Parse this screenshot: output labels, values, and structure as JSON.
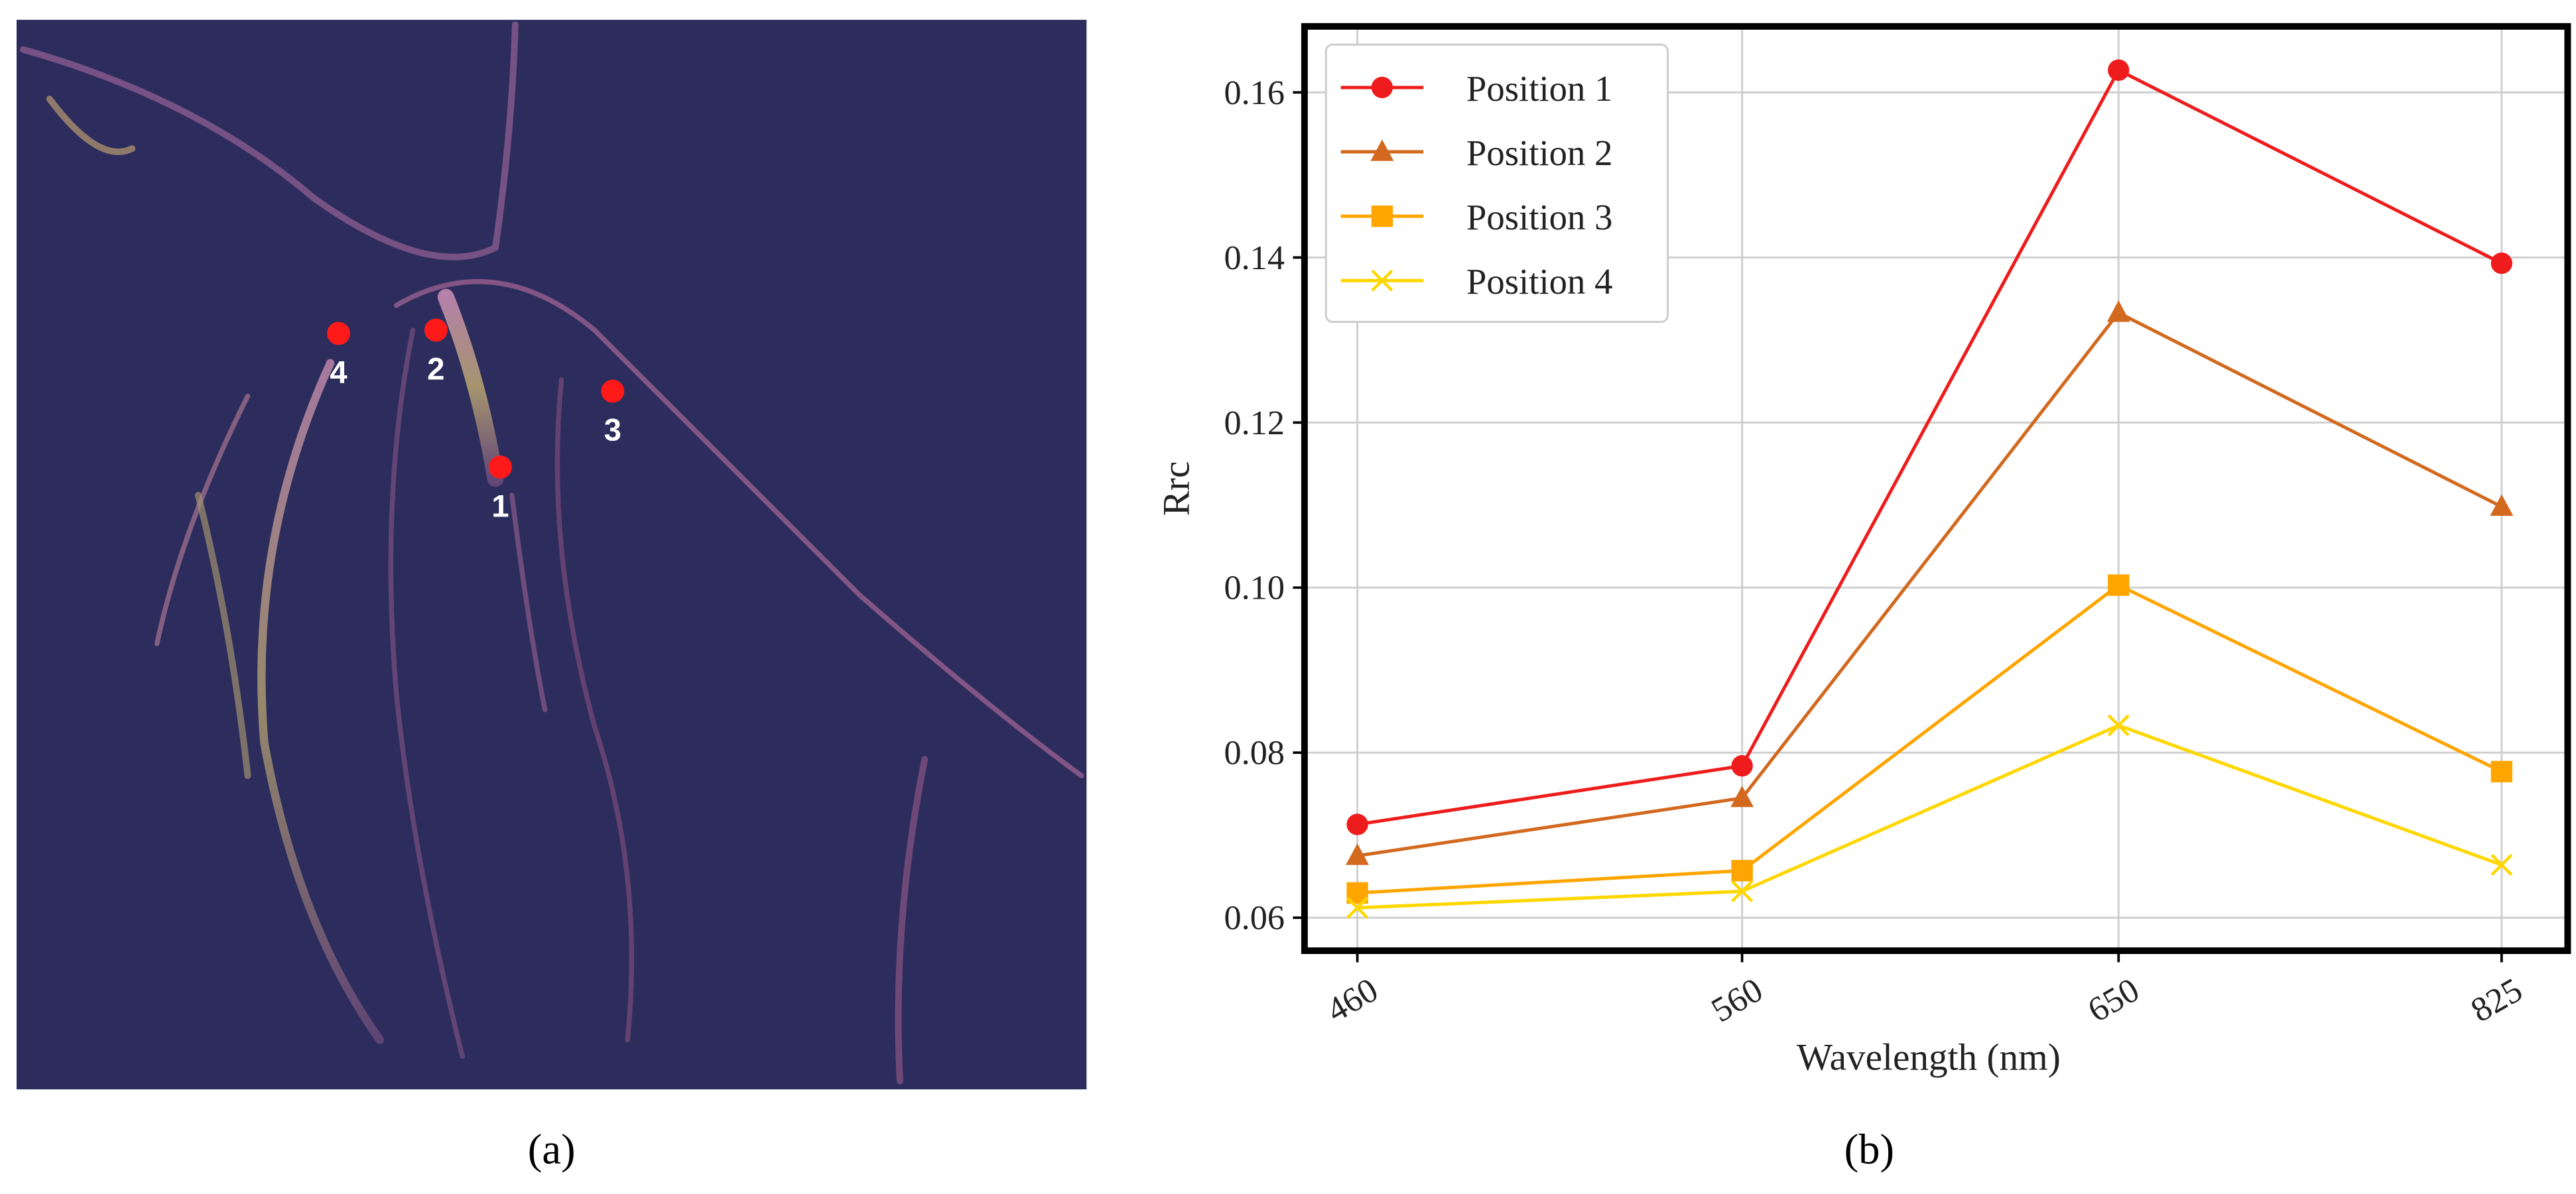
{
  "image_panel": {
    "caption": "(a)",
    "points": [
      {
        "label": "1"
      },
      {
        "label": "2"
      },
      {
        "label": "3"
      },
      {
        "label": "4"
      }
    ]
  },
  "chart_data": {
    "type": "line",
    "caption": "(b)",
    "x_label": "Wavelength (nm)",
    "y_label": "Rrc",
    "categories": [
      "460",
      "560",
      "650",
      "825"
    ],
    "series": [
      {
        "name": "Position 1",
        "color": "#ee1c1c",
        "marker": "circle",
        "values": [
          0.0713,
          0.0784,
          0.1627,
          0.1393
        ]
      },
      {
        "name": "Position 2",
        "color": "#d2691e",
        "marker": "triangle",
        "values": [
          0.0675,
          0.0745,
          0.1333,
          0.1098
        ]
      },
      {
        "name": "Position 3",
        "color": "#ffa500",
        "marker": "square",
        "values": [
          0.063,
          0.0657,
          0.1003,
          0.0777
        ]
      },
      {
        "name": "Position 4",
        "color": "#ffd700",
        "marker": "x",
        "values": [
          0.0612,
          0.0632,
          0.0833,
          0.0664
        ]
      }
    ],
    "ylim": [
      0.056,
      0.168
    ],
    "yticks": [
      {
        "value": 0.06,
        "label": "0.06"
      },
      {
        "value": 0.08,
        "label": "0.08"
      },
      {
        "value": 0.1,
        "label": "0.10"
      },
      {
        "value": 0.12,
        "label": "0.12"
      },
      {
        "value": 0.14,
        "label": "0.14"
      },
      {
        "value": 0.16,
        "label": "0.16"
      }
    ],
    "grid": true,
    "legend": "upper left"
  }
}
